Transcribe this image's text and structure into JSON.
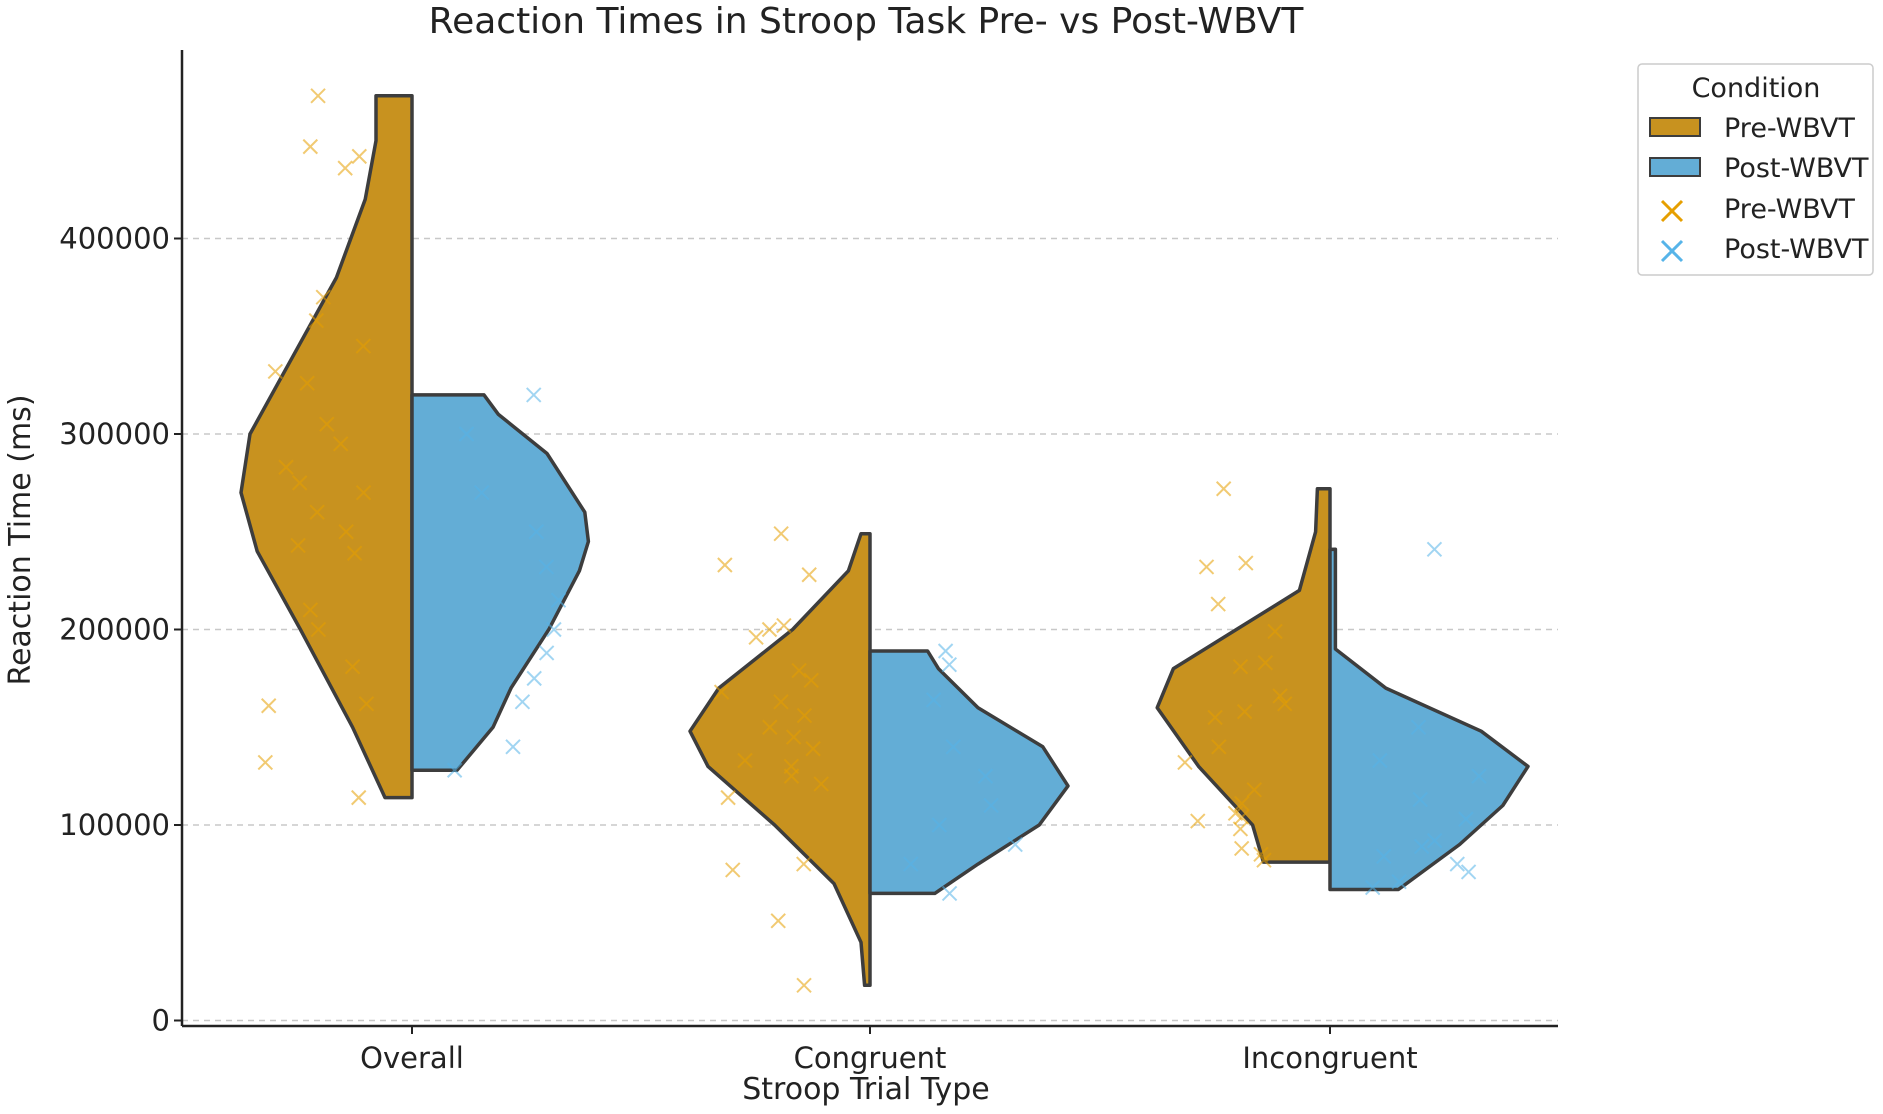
{
  "chart_data": {
    "type": "violin",
    "title": "Reaction Times in Stroop Task Pre- vs Post-WBVT",
    "xlabel": "Stroop Trial Type",
    "ylabel": "Reaction Time (ms)",
    "categories": [
      "Overall",
      "Congruent",
      "Incongruent"
    ],
    "yticks": [
      0,
      100000,
      200000,
      300000,
      400000
    ],
    "ytick_labels": [
      "0",
      "100000",
      "200000",
      "300000",
      "400000"
    ],
    "ylim": [
      -5000,
      495000
    ],
    "grid": "y-dashed",
    "legend": {
      "title": "Condition",
      "position": "top-right-outside",
      "entries": [
        {
          "label": "Pre-WBVT",
          "kind": "violin"
        },
        {
          "label": "Post-WBVT",
          "kind": "violin"
        },
        {
          "label": "Pre-WBVT",
          "kind": "points"
        },
        {
          "label": "Post-WBVT",
          "kind": "points"
        }
      ]
    },
    "colors": {
      "pre_fill": "#C8921F",
      "post_fill": "#63ADD6",
      "pre_marker": "#E69F00",
      "post_marker": "#56B4E9",
      "outline": "#3d3d3d",
      "grid": "#c8c8c8"
    },
    "series": [
      {
        "name": "Pre-WBVT",
        "violins": [
          {
            "category": "Overall",
            "min": 114000,
            "max": 473000,
            "profile": [
              [
                114000,
                0.15
              ],
              [
                150000,
                0.33
              ],
              [
                200000,
                0.62
              ],
              [
                240000,
                0.86
              ],
              [
                270000,
                0.95
              ],
              [
                300000,
                0.9
              ],
              [
                340000,
                0.66
              ],
              [
                380000,
                0.42
              ],
              [
                420000,
                0.26
              ],
              [
                450000,
                0.2
              ],
              [
                473000,
                0.2
              ]
            ]
          },
          {
            "category": "Congruent",
            "min": 18000,
            "max": 249000,
            "profile": [
              [
                18000,
                0.03
              ],
              [
                40000,
                0.05
              ],
              [
                70000,
                0.2
              ],
              [
                100000,
                0.53
              ],
              [
                130000,
                0.9
              ],
              [
                148000,
                1.0
              ],
              [
                170000,
                0.84
              ],
              [
                200000,
                0.43
              ],
              [
                230000,
                0.12
              ],
              [
                249000,
                0.05
              ]
            ]
          },
          {
            "category": "Incongruent",
            "min": 81000,
            "max": 272000,
            "profile": [
              [
                81000,
                0.37
              ],
              [
                100000,
                0.43
              ],
              [
                130000,
                0.73
              ],
              [
                160000,
                0.96
              ],
              [
                180000,
                0.87
              ],
              [
                200000,
                0.52
              ],
              [
                220000,
                0.17
              ],
              [
                250000,
                0.08
              ],
              [
                272000,
                0.07
              ]
            ]
          }
        ],
        "points": [
          {
            "category": "Overall",
            "values": [
              473000,
              447000,
              442000,
              436000,
              370000,
              358000,
              345000,
              332000,
              326000,
              305000,
              295000,
              283000,
              275000,
              270000,
              260000,
              250000,
              243000,
              239000,
              210000,
              200000,
              181000,
              162000,
              161000,
              132000,
              114000
            ]
          },
          {
            "category": "Congruent",
            "values": [
              249000,
              233000,
              228000,
              202000,
              200000,
              196000,
              179000,
              174000,
              168000,
              163000,
              156000,
              150000,
              145000,
              139000,
              133000,
              130000,
              125000,
              121000,
              114000,
              80000,
              77000,
              51000,
              18000
            ]
          },
          {
            "category": "Incongruent",
            "values": [
              272000,
              234000,
              232000,
              213000,
              199000,
              183000,
              181000,
              166000,
              162000,
              158000,
              155000,
              140000,
              132000,
              118000,
              111000,
              106000,
              104000,
              102000,
              98000,
              88000,
              85000,
              82000
            ]
          }
        ]
      },
      {
        "name": "Post-WBVT",
        "violins": [
          {
            "category": "Overall",
            "min": 128000,
            "max": 320000,
            "profile": [
              [
                128000,
                0.25
              ],
              [
                150000,
                0.45
              ],
              [
                170000,
                0.55
              ],
              [
                200000,
                0.76
              ],
              [
                230000,
                0.93
              ],
              [
                245000,
                0.98
              ],
              [
                260000,
                0.96
              ],
              [
                290000,
                0.75
              ],
              [
                310000,
                0.48
              ],
              [
                320000,
                0.4
              ]
            ]
          },
          {
            "category": "Congruent",
            "min": 65000,
            "max": 189000,
            "profile": [
              [
                65000,
                0.36
              ],
              [
                80000,
                0.6
              ],
              [
                100000,
                0.94
              ],
              [
                120000,
                1.1
              ],
              [
                140000,
                0.96
              ],
              [
                160000,
                0.6
              ],
              [
                180000,
                0.38
              ],
              [
                189000,
                0.32
              ]
            ]
          },
          {
            "category": "Incongruent",
            "min": 67000,
            "max": 241000,
            "profile": [
              [
                67000,
                0.38
              ],
              [
                90000,
                0.72
              ],
              [
                110000,
                0.96
              ],
              [
                130000,
                1.1
              ],
              [
                148000,
                0.84
              ],
              [
                170000,
                0.31
              ],
              [
                190000,
                0.03
              ],
              [
                215000,
                0.03
              ],
              [
                241000,
                0.03
              ]
            ]
          }
        ],
        "points": [
          {
            "category": "Overall",
            "values": [
              320000,
              300000,
              270000,
              250000,
              232000,
              215000,
              200000,
              188000,
              175000,
              163000,
              140000,
              128000
            ]
          },
          {
            "category": "Congruent",
            "values": [
              189000,
              182000,
              164000,
              140000,
              125000,
              110000,
              100000,
              90000,
              80000,
              65000
            ]
          },
          {
            "category": "Incongruent",
            "values": [
              241000,
              150000,
              133000,
              125000,
              113000,
              103000,
              92000,
              89000,
              84000,
              80000,
              76000,
              71000,
              68000
            ]
          }
        ]
      }
    ]
  }
}
